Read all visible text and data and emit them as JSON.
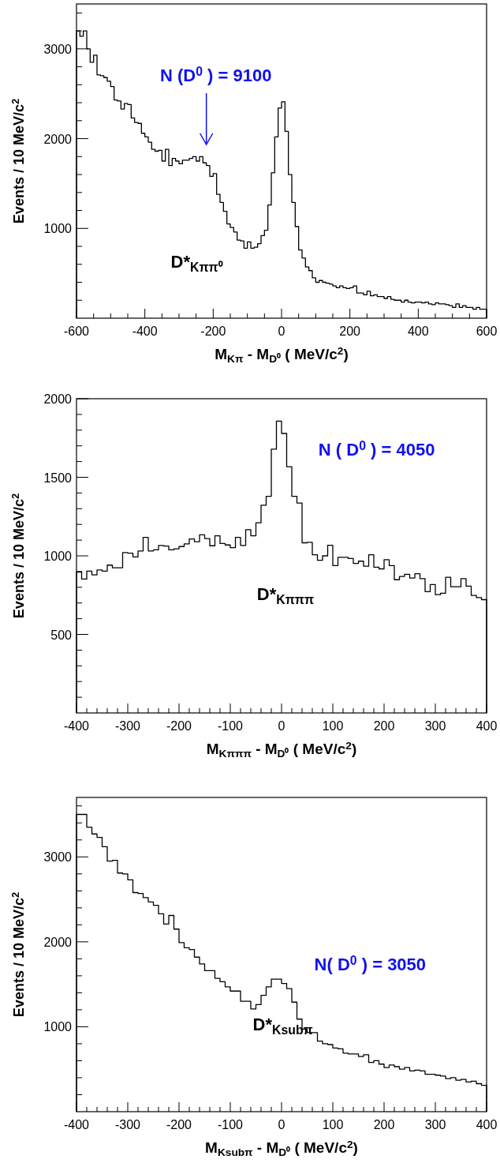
{
  "chart_data": [
    {
      "type": "histogram",
      "xlabel": "M$_{Kπ}$ - M$_{D⁰}$ ( MeV/c$^{2}$)",
      "ylabel": "Events / 10 MeV/c$^{2}$",
      "color": "#000000",
      "bins": [
        -600,
        -590,
        -580,
        -570,
        -560,
        -550,
        -540,
        -530,
        -520,
        -510,
        -500,
        -490,
        -480,
        -470,
        -460,
        -450,
        -440,
        -430,
        -420,
        -410,
        -400,
        -390,
        -380,
        -370,
        -360,
        -350,
        -340,
        -330,
        -320,
        -310,
        -300,
        -290,
        -280,
        -270,
        -260,
        -250,
        -240,
        -230,
        -220,
        -210,
        -200,
        -190,
        -180,
        -170,
        -160,
        -150,
        -140,
        -130,
        -120,
        -110,
        -100,
        -90,
        -80,
        -70,
        -60,
        -50,
        -40,
        -30,
        -20,
        -10,
        0,
        10,
        20,
        30,
        40,
        50,
        60,
        70,
        80,
        90,
        100,
        110,
        120,
        130,
        140,
        150,
        160,
        170,
        180,
        190,
        200,
        210,
        220,
        230,
        240,
        250,
        260,
        270,
        280,
        290,
        300,
        310,
        320,
        330,
        340,
        350,
        360,
        370,
        380,
        390,
        400,
        410,
        420,
        430,
        440,
        450,
        460,
        470,
        480,
        490,
        500,
        510,
        520,
        530,
        540,
        550,
        560,
        570,
        580,
        590,
        600
      ],
      "values": [
        3200,
        3140,
        3200,
        3000,
        2850,
        2930,
        2710,
        2700,
        2680,
        2640,
        2580,
        2430,
        2420,
        2330,
        2390,
        2380,
        2230,
        2180,
        2170,
        2060,
        2020,
        1960,
        1880,
        1860,
        1870,
        1750,
        1880,
        1700,
        1780,
        1750,
        1720,
        1760,
        1760,
        1780,
        1800,
        1750,
        1800,
        1730,
        1700,
        1580,
        1610,
        1380,
        1290,
        1190,
        1050,
        1010,
        960,
        870,
        860,
        780,
        850,
        780,
        790,
        830,
        920,
        980,
        1260,
        1620,
        2020,
        2340,
        2410,
        2080,
        1600,
        1290,
        1020,
        760,
        670,
        570,
        530,
        450,
        400,
        420,
        400,
        390,
        380,
        360,
        340,
        360,
        340,
        330,
        340,
        360,
        280,
        280,
        260,
        300,
        250,
        260,
        240,
        240,
        220,
        240,
        210,
        200,
        200,
        180,
        200,
        180,
        170,
        180,
        180,
        170,
        180,
        160,
        150,
        170,
        160,
        160,
        150,
        140,
        120,
        160,
        120,
        140,
        120,
        120,
        100,
        120,
        100,
        100
      ],
      "xlim": [
        -600,
        600
      ],
      "ylim": [
        0,
        3500
      ],
      "xticks": [
        -600,
        {
          "value": -550,
          "label": null
        },
        {
          "value": -500,
          "label": null
        },
        {
          "value": -450,
          "label": null
        },
        -400,
        {
          "value": -350,
          "label": null
        },
        {
          "value": -300,
          "label": null
        },
        {
          "value": -250,
          "label": null
        },
        -200,
        {
          "value": -150,
          "label": null
        },
        {
          "value": -100,
          "label": null
        },
        {
          "value": -50,
          "label": null
        },
        0,
        {
          "value": 50,
          "label": null
        },
        {
          "value": 100,
          "label": null
        },
        {
          "value": 150,
          "label": null
        },
        200,
        {
          "value": 250,
          "label": null
        },
        {
          "value": 300,
          "label": null
        },
        {
          "value": 350,
          "label": null
        },
        400,
        {
          "value": 450,
          "label": null
        },
        {
          "value": 500,
          "label": null
        },
        {
          "value": 550,
          "label": null
        },
        600
      ],
      "yticks": [
        {
          "value": 200,
          "label": null
        },
        {
          "value": 400,
          "label": null
        },
        {
          "value": 600,
          "label": null
        },
        {
          "value": 800,
          "label": null
        },
        1000,
        {
          "value": 1200,
          "label": null
        },
        {
          "value": 1400,
          "label": null
        },
        {
          "value": 1600,
          "label": null
        },
        {
          "value": 1800,
          "label": null
        },
        2000,
        {
          "value": 2200,
          "label": null
        },
        {
          "value": 2400,
          "label": null
        },
        {
          "value": 2600,
          "label": null
        },
        {
          "value": 2800,
          "label": null
        },
        3000,
        {
          "value": 3200,
          "label": null
        },
        {
          "value": 3400,
          "label": null
        }
      ],
      "annotations": [
        "N (D$^{0}$ ) = 9100",
        "D*$_{Kππ⁰}$"
      ]
    },
    {
      "type": "histogram",
      "xlabel": "M$_{Kπππ}$ - M$_{D⁰}$ ( MeV/c$^{2}$)",
      "ylabel": "Events / 10 MeV/c$^{2}$",
      "color": "#000000",
      "bins": [
        -400,
        -390,
        -380,
        -370,
        -360,
        -350,
        -340,
        -330,
        -320,
        -310,
        -300,
        -290,
        -280,
        -270,
        -260,
        -250,
        -240,
        -230,
        -220,
        -210,
        -200,
        -190,
        -180,
        -170,
        -160,
        -150,
        -140,
        -130,
        -120,
        -110,
        -100,
        -90,
        -80,
        -70,
        -60,
        -50,
        -40,
        -30,
        -20,
        -10,
        0,
        10,
        20,
        30,
        40,
        50,
        60,
        70,
        80,
        90,
        100,
        110,
        120,
        130,
        140,
        150,
        160,
        170,
        180,
        190,
        200,
        210,
        220,
        230,
        240,
        250,
        260,
        270,
        280,
        290,
        300,
        310,
        320,
        330,
        340,
        350,
        360,
        370,
        380,
        390,
        400
      ],
      "values": [
        897,
        852,
        903,
        879,
        910,
        903,
        941,
        924,
        924,
        1021,
        1017,
        993,
        1031,
        1117,
        1031,
        1038,
        1066,
        1062,
        1038,
        1045,
        1059,
        1076,
        1107,
        1090,
        1134,
        1110,
        1064,
        1128,
        1079,
        1069,
        1052,
        1117,
        1066,
        1166,
        1128,
        1210,
        1322,
        1379,
        1679,
        1857,
        1779,
        1567,
        1379,
        1336,
        1083,
        1086,
        1007,
        972,
        1000,
        1067,
        938,
        991,
        991,
        983,
        952,
        966,
        934,
        1007,
        928,
        917,
        976,
        938,
        848,
        869,
        883,
        859,
        886,
        855,
        772,
        817,
        753,
        762,
        864,
        803,
        803,
        855,
        807,
        748,
        734,
        721
      ],
      "xlim": [
        -400,
        400
      ],
      "ylim": [
        0,
        2000
      ],
      "xticks": [
        -400,
        {
          "value": -380,
          "label": null
        },
        {
          "value": -360,
          "label": null
        },
        {
          "value": -340,
          "label": null
        },
        {
          "value": -320,
          "label": null
        },
        -300,
        {
          "value": -280,
          "label": null
        },
        {
          "value": -260,
          "label": null
        },
        {
          "value": -240,
          "label": null
        },
        {
          "value": -220,
          "label": null
        },
        -200,
        {
          "value": -180,
          "label": null
        },
        {
          "value": -160,
          "label": null
        },
        {
          "value": -140,
          "label": null
        },
        {
          "value": -120,
          "label": null
        },
        -100,
        {
          "value": -80,
          "label": null
        },
        {
          "value": -60,
          "label": null
        },
        {
          "value": -40,
          "label": null
        },
        {
          "value": -20,
          "label": null
        },
        0,
        {
          "value": 20,
          "label": null
        },
        {
          "value": 40,
          "label": null
        },
        {
          "value": 60,
          "label": null
        },
        {
          "value": 80,
          "label": null
        },
        100,
        {
          "value": 120,
          "label": null
        },
        {
          "value": 140,
          "label": null
        },
        {
          "value": 160,
          "label": null
        },
        {
          "value": 180,
          "label": null
        },
        200,
        {
          "value": 220,
          "label": null
        },
        {
          "value": 240,
          "label": null
        },
        {
          "value": 260,
          "label": null
        },
        {
          "value": 280,
          "label": null
        },
        300,
        {
          "value": 320,
          "label": null
        },
        {
          "value": 340,
          "label": null
        },
        {
          "value": 360,
          "label": null
        },
        {
          "value": 380,
          "label": null
        },
        400
      ],
      "yticks": [
        {
          "value": 100,
          "label": null
        },
        {
          "value": 200,
          "label": null
        },
        {
          "value": 300,
          "label": null
        },
        {
          "value": 400,
          "label": null
        },
        500,
        {
          "value": 600,
          "label": null
        },
        {
          "value": 700,
          "label": null
        },
        {
          "value": 800,
          "label": null
        },
        {
          "value": 900,
          "label": null
        },
        1000,
        {
          "value": 1100,
          "label": null
        },
        {
          "value": 1200,
          "label": null
        },
        {
          "value": 1300,
          "label": null
        },
        {
          "value": 1400,
          "label": null
        },
        1500,
        {
          "value": 1600,
          "label": null
        },
        {
          "value": 1700,
          "label": null
        },
        {
          "value": 1800,
          "label": null
        },
        {
          "value": 1900,
          "label": null
        },
        2000
      ],
      "annotations": [
        "N ( D$^{0}$ ) = 4050",
        "D*$_{Kπππ}$"
      ]
    },
    {
      "type": "histogram",
      "xlabel": "M$_{Ksubπ}$ - M$_{D⁰}$ ( MeV/c$^{2}$)",
      "ylabel": "Events / 10 MeV/c$^{2}$",
      "color": "#000000",
      "bins": [
        -400,
        -390,
        -380,
        -370,
        -360,
        -350,
        -340,
        -330,
        -320,
        -310,
        -300,
        -290,
        -280,
        -270,
        -260,
        -250,
        -240,
        -230,
        -220,
        -210,
        -200,
        -190,
        -180,
        -170,
        -160,
        -150,
        -140,
        -130,
        -120,
        -110,
        -100,
        -90,
        -80,
        -70,
        -60,
        -50,
        -40,
        -30,
        -20,
        -10,
        0,
        10,
        20,
        30,
        40,
        50,
        60,
        70,
        80,
        90,
        100,
        110,
        120,
        130,
        140,
        150,
        160,
        170,
        180,
        190,
        200,
        210,
        220,
        230,
        240,
        250,
        260,
        270,
        280,
        290,
        300,
        310,
        320,
        330,
        340,
        350,
        360,
        370,
        380,
        390,
        400
      ],
      "values": [
        3500,
        3500,
        3350,
        3270,
        3230,
        3120,
        2950,
        2960,
        2810,
        2800,
        2730,
        2580,
        2570,
        2520,
        2470,
        2430,
        2330,
        2210,
        2310,
        2150,
        1990,
        1930,
        1910,
        1820,
        1740,
        1660,
        1660,
        1570,
        1530,
        1470,
        1420,
        1420,
        1300,
        1300,
        1210,
        1260,
        1370,
        1470,
        1560,
        1560,
        1510,
        1450,
        1290,
        1090,
        970,
        930,
        930,
        830,
        800,
        790,
        750,
        740,
        690,
        680,
        680,
        650,
        670,
        580,
        600,
        560,
        520,
        550,
        530,
        500,
        520,
        480,
        490,
        480,
        440,
        440,
        430,
        420,
        390,
        400,
        370,
        380,
        350,
        360,
        330,
        310
      ],
      "xlim": [
        -400,
        400
      ],
      "ylim": [
        0,
        3700
      ],
      "xticks": [
        -400,
        {
          "value": -380,
          "label": null
        },
        {
          "value": -360,
          "label": null
        },
        {
          "value": -340,
          "label": null
        },
        {
          "value": -320,
          "label": null
        },
        -300,
        {
          "value": -280,
          "label": null
        },
        {
          "value": -260,
          "label": null
        },
        {
          "value": -240,
          "label": null
        },
        {
          "value": -220,
          "label": null
        },
        -200,
        {
          "value": -180,
          "label": null
        },
        {
          "value": -160,
          "label": null
        },
        {
          "value": -140,
          "label": null
        },
        {
          "value": -120,
          "label": null
        },
        -100,
        {
          "value": -80,
          "label": null
        },
        {
          "value": -60,
          "label": null
        },
        {
          "value": -40,
          "label": null
        },
        {
          "value": -20,
          "label": null
        },
        0,
        {
          "value": 20,
          "label": null
        },
        {
          "value": 40,
          "label": null
        },
        {
          "value": 60,
          "label": null
        },
        {
          "value": 80,
          "label": null
        },
        100,
        {
          "value": 120,
          "label": null
        },
        {
          "value": 140,
          "label": null
        },
        {
          "value": 160,
          "label": null
        },
        {
          "value": 180,
          "label": null
        },
        200,
        {
          "value": 220,
          "label": null
        },
        {
          "value": 240,
          "label": null
        },
        {
          "value": 260,
          "label": null
        },
        {
          "value": 280,
          "label": null
        },
        300,
        {
          "value": 320,
          "label": null
        },
        {
          "value": 340,
          "label": null
        },
        {
          "value": 360,
          "label": null
        },
        {
          "value": 380,
          "label": null
        },
        400
      ],
      "yticks": [
        {
          "value": 200,
          "label": null
        },
        {
          "value": 400,
          "label": null
        },
        {
          "value": 600,
          "label": null
        },
        {
          "value": 800,
          "label": null
        },
        1000,
        {
          "value": 1200,
          "label": null
        },
        {
          "value": 1400,
          "label": null
        },
        {
          "value": 1600,
          "label": null
        },
        {
          "value": 1800,
          "label": null
        },
        2000,
        {
          "value": 2200,
          "label": null
        },
        {
          "value": 2400,
          "label": null
        },
        {
          "value": 2600,
          "label": null
        },
        {
          "value": 2800,
          "label": null
        },
        3000,
        {
          "value": 3200,
          "label": null
        },
        {
          "value": 3400,
          "label": null
        },
        {
          "value": 3600,
          "label": null
        }
      ],
      "annotations": [
        "N( D$^{0}$ ) = 3050",
        "D*$_{Ksubπ}$"
      ]
    }
  ]
}
